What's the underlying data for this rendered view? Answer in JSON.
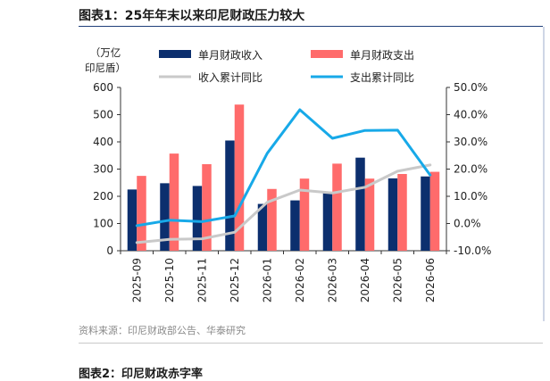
{
  "figure": {
    "title": "图表1：25年年末以来印尼财政压力较大",
    "source": "资料来源：印尼财政部公告、华泰研究",
    "next_caption": "图表2：印尼财政赤字率"
  },
  "chart_data": {
    "type": "bar",
    "categories": [
      "2025-09",
      "2025-10",
      "2025-11",
      "2025-12",
      "2026-01",
      "2026-02",
      "2026-03",
      "2026-04",
      "2026-05",
      "2026-06"
    ],
    "ylabel": "（万亿\n印尼盾）",
    "ylim": [
      0,
      600
    ],
    "y_ticks": [
      "600",
      "500",
      "400",
      "300",
      "200",
      "100",
      "0"
    ],
    "y2lim": [
      -10,
      50
    ],
    "y2_ticks": [
      "50.0%",
      "40.0%",
      "30.0%",
      "20.0%",
      "10.0%",
      "0.0%",
      "-10.0%"
    ],
    "grid": false,
    "legend_position": "top",
    "series": [
      {
        "name": "单月财政收入",
        "type": "bar",
        "axis": "left",
        "color": "#0c2f6e",
        "values": [
          225,
          248,
          238,
          405,
          172,
          185,
          215,
          342,
          266,
          273
        ]
      },
      {
        "name": "单月财政支出",
        "type": "bar",
        "axis": "left",
        "color": "#ff6b6b",
        "values": [
          275,
          357,
          318,
          537,
          227,
          265,
          320,
          265,
          282,
          290
        ]
      },
      {
        "name": "收入累计同比",
        "type": "line",
        "axis": "right",
        "color": "#c9c9c9",
        "values": [
          -7.0,
          -5.8,
          -5.6,
          -3.2,
          7.8,
          12.3,
          11.2,
          13.3,
          19.2,
          21.5
        ]
      },
      {
        "name": "支出累计同比",
        "type": "line",
        "axis": "right",
        "color": "#17a9e8",
        "values": [
          -0.8,
          1.2,
          0.7,
          2.8,
          25.8,
          41.8,
          31.3,
          34.2,
          34.3,
          17.8
        ]
      }
    ]
  }
}
